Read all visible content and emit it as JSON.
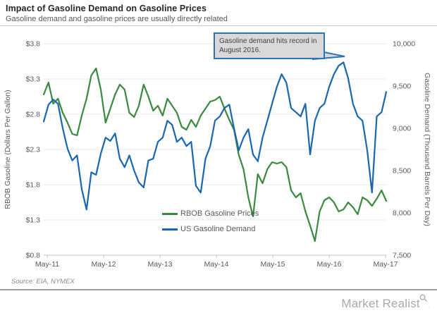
{
  "header": {
    "title": "Impact of Gasoline Demand on Gasoline Prices",
    "subtitle": "Gasoline demand and gasoline prices are usually directly related"
  },
  "annotation": {
    "lines": [
      "Gasoline demand hits record in",
      "August  2016."
    ]
  },
  "legend": [
    {
      "label": "RBOB Gasoline Prices",
      "color": "#3a8a3e"
    },
    {
      "label": "US Gasoline Demand",
      "color": "#1b67af"
    }
  ],
  "footer": {
    "source": "Source: EIA, NYMEX",
    "brand": "Market Realist",
    "brand_mark": "."
  },
  "colors": {
    "price_line": "#3a8a3e",
    "demand_line": "#1b67af",
    "annotation_border": "#2e74b5",
    "annotation_fill": "#d9d9d9",
    "gridline": "#e8e8e8",
    "axis_line": "#c2c2c2",
    "tick_text": "#595959"
  },
  "chart_data": {
    "type": "line",
    "x_interval": "monthly",
    "x_start": "May-2011",
    "x_end": "May-2017",
    "x_tick_labels": [
      "May-11",
      "May-12",
      "May-13",
      "May-14",
      "May-15",
      "May-16",
      "May-17"
    ],
    "grid": "horizontal",
    "legend_position": "inside-bottom-center",
    "left_axis": {
      "label": "RBOB Gasoline (Dollars Per Gallon)",
      "min": 0.8,
      "max": 3.8,
      "tick_labels": [
        "$3.8",
        "$3.3",
        "$2.8",
        "$2.3",
        "$1.8",
        "$1.3",
        "$0.8"
      ]
    },
    "right_axis": {
      "label": "Gasoline Demand (Thousand Barrels Per Day)",
      "min": 7500,
      "max": 10000,
      "tick_labels": [
        "10,000",
        "9,500",
        "9,000",
        "8,500",
        "8,000",
        "7,500"
      ]
    },
    "series": [
      {
        "name": "RBOB Gasoline Prices",
        "axis": "left",
        "color": "#3a8a3e",
        "values": [
          3.08,
          3.25,
          2.95,
          3.02,
          2.82,
          2.68,
          2.52,
          2.5,
          2.78,
          3.02,
          3.35,
          3.45,
          3.15,
          2.68,
          2.88,
          3.08,
          3.22,
          3.15,
          2.82,
          2.76,
          2.92,
          3.22,
          3.05,
          2.85,
          2.92,
          2.78,
          3.02,
          2.92,
          2.82,
          2.62,
          2.58,
          2.72,
          2.62,
          2.78,
          2.88,
          2.98,
          3.0,
          3.05,
          2.88,
          2.72,
          2.58,
          2.22,
          2.02,
          1.62,
          1.35,
          1.95,
          1.82,
          2.02,
          2.12,
          2.1,
          2.12,
          2.05,
          1.72,
          1.62,
          1.68,
          1.42,
          1.22,
          1.0,
          1.42,
          1.58,
          1.62,
          1.55,
          1.42,
          1.45,
          1.55,
          1.48,
          1.38,
          1.62,
          1.58,
          1.5,
          1.6,
          1.72,
          1.57
        ]
      },
      {
        "name": "US Gasoline Demand",
        "axis": "right",
        "color": "#1b67af",
        "values": [
          9080,
          9280,
          9340,
          9290,
          9000,
          8760,
          8620,
          8680,
          8280,
          8040,
          8480,
          8450,
          8700,
          8890,
          8850,
          8940,
          8640,
          8540,
          8680,
          8500,
          8360,
          8300,
          8620,
          8640,
          8840,
          8890,
          9090,
          9040,
          8840,
          8890,
          8790,
          8840,
          8320,
          8240,
          8640,
          8790,
          9090,
          9140,
          9240,
          9280,
          9000,
          8740,
          8890,
          8990,
          8690,
          8610,
          8890,
          9090,
          9290,
          9490,
          9640,
          9540,
          9240,
          9190,
          9140,
          9290,
          8690,
          9090,
          9240,
          9290,
          9490,
          9640,
          9740,
          9780,
          9590,
          9290,
          9140,
          9090,
          8740,
          8240,
          9140,
          9190,
          9430
        ]
      }
    ]
  }
}
